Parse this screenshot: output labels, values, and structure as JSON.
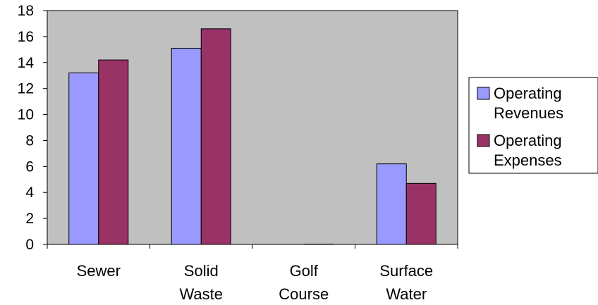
{
  "chart_data": {
    "type": "bar",
    "categories": [
      [
        "Sewer"
      ],
      [
        "Solid",
        "Waste"
      ],
      [
        "Golf",
        "Course"
      ],
      [
        "Surface",
        "Water"
      ]
    ],
    "series": [
      {
        "name": [
          "Operating",
          "Revenues"
        ],
        "color": "#9999ff",
        "values": [
          13.2,
          15.1,
          0,
          6.2
        ]
      },
      {
        "name": [
          "Operating",
          "Expenses"
        ],
        "color": "#993366",
        "values": [
          14.2,
          16.6,
          0.02,
          4.7
        ]
      }
    ],
    "ylim": [
      0,
      18
    ],
    "yticks": [
      0,
      2,
      4,
      6,
      8,
      10,
      12,
      14,
      16,
      18
    ],
    "grid": false,
    "plot_background": "#c0c0c0",
    "legend_position": "right",
    "title": "",
    "xlabel": "",
    "ylabel": ""
  }
}
